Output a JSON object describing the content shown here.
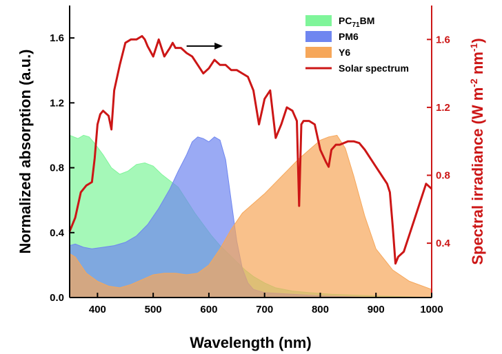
{
  "chart_data": {
    "type": "area",
    "xlabel": "Wavelength (nm)",
    "ylabel": "Normalized absorption (a.u.)",
    "ylabel_right": "Spectral irradiance (W m-2 nm-1)",
    "xlim": [
      350,
      1000
    ],
    "ylim": [
      0,
      1.8
    ],
    "ylim_right": [
      0.08,
      1.8
    ],
    "xticks": [
      400,
      500,
      600,
      700,
      800,
      900,
      1000
    ],
    "yticks": [
      0.0,
      0.4,
      0.8,
      1.2,
      1.6
    ],
    "yticks_right": [
      0.4,
      0.8,
      1.2,
      1.6
    ],
    "grid": false,
    "legend_position": "top-right",
    "arrow": {
      "from_x": 560,
      "to_x": 625,
      "y": 1.55
    },
    "legend": [
      {
        "label": "PC71BM",
        "base": "PC",
        "sub": "71",
        "tail": "BM",
        "color": "#7ff59a",
        "kind": "area"
      },
      {
        "label": "PM6",
        "color": "#6f86f0",
        "kind": "area"
      },
      {
        "label": "Y6",
        "color": "#f6a75a",
        "kind": "area"
      },
      {
        "label": "Solar spectrum",
        "color": "#cc1616",
        "kind": "line"
      }
    ],
    "series": [
      {
        "name": "PC71BM",
        "axis": "left",
        "color": "#7ff59a",
        "x": [
          350,
          365,
          375,
          385,
          395,
          410,
          425,
          440,
          455,
          470,
          485,
          500,
          515,
          530,
          545,
          560,
          575,
          590,
          605,
          620,
          635,
          650,
          665,
          680,
          700,
          720,
          750,
          780,
          820,
          860,
          900,
          950,
          1000
        ],
        "y": [
          1.0,
          0.98,
          1.0,
          0.99,
          0.95,
          0.88,
          0.8,
          0.76,
          0.78,
          0.82,
          0.83,
          0.81,
          0.76,
          0.72,
          0.68,
          0.6,
          0.52,
          0.45,
          0.38,
          0.32,
          0.27,
          0.22,
          0.17,
          0.13,
          0.09,
          0.06,
          0.04,
          0.03,
          0.02,
          0.015,
          0.01,
          0.005,
          0.0
        ]
      },
      {
        "name": "PM6",
        "axis": "left",
        "color": "#6f86f0",
        "x": [
          350,
          360,
          375,
          390,
          410,
          430,
          450,
          470,
          490,
          510,
          530,
          545,
          560,
          570,
          580,
          590,
          600,
          610,
          620,
          630,
          640,
          650,
          660,
          670,
          680,
          700,
          750,
          800,
          900,
          1000
        ],
        "y": [
          0.32,
          0.33,
          0.31,
          0.3,
          0.31,
          0.32,
          0.34,
          0.38,
          0.45,
          0.55,
          0.67,
          0.78,
          0.88,
          0.96,
          0.99,
          0.98,
          0.96,
          0.99,
          0.97,
          0.85,
          0.6,
          0.35,
          0.18,
          0.09,
          0.05,
          0.03,
          0.02,
          0.01,
          0.0,
          0.0
        ]
      },
      {
        "name": "Y6",
        "axis": "left",
        "color": "#f6a75a",
        "x": [
          350,
          360,
          380,
          400,
          420,
          440,
          460,
          480,
          500,
          520,
          540,
          560,
          580,
          600,
          620,
          640,
          660,
          680,
          700,
          720,
          740,
          760,
          780,
          800,
          815,
          830,
          845,
          860,
          880,
          900,
          930,
          960,
          1000
        ],
        "y": [
          0.27,
          0.25,
          0.15,
          0.1,
          0.07,
          0.06,
          0.08,
          0.11,
          0.14,
          0.15,
          0.15,
          0.14,
          0.15,
          0.2,
          0.3,
          0.42,
          0.52,
          0.58,
          0.64,
          0.71,
          0.78,
          0.85,
          0.91,
          0.97,
          0.99,
          1.0,
          0.92,
          0.75,
          0.5,
          0.3,
          0.17,
          0.1,
          0.05
        ]
      },
      {
        "name": "Solar spectrum",
        "axis": "right",
        "color": "#cc1616",
        "x": [
          350,
          360,
          370,
          380,
          390,
          395,
          400,
          405,
          410,
          420,
          425,
          430,
          440,
          450,
          460,
          470,
          480,
          485,
          490,
          500,
          510,
          520,
          530,
          535,
          540,
          550,
          560,
          570,
          580,
          590,
          600,
          610,
          620,
          630,
          640,
          650,
          660,
          670,
          680,
          690,
          700,
          710,
          720,
          730,
          740,
          750,
          758,
          762,
          766,
          770,
          780,
          790,
          800,
          810,
          815,
          820,
          828,
          835,
          850,
          860,
          870,
          880,
          890,
          900,
          910,
          920,
          925,
          930,
          935,
          940,
          950,
          960,
          970,
          980,
          990,
          1000
        ],
        "y": [
          0.47,
          0.55,
          0.7,
          0.74,
          0.76,
          0.9,
          1.1,
          1.16,
          1.18,
          1.15,
          1.07,
          1.3,
          1.45,
          1.58,
          1.6,
          1.6,
          1.62,
          1.6,
          1.56,
          1.5,
          1.6,
          1.5,
          1.55,
          1.58,
          1.55,
          1.55,
          1.52,
          1.5,
          1.45,
          1.4,
          1.43,
          1.48,
          1.45,
          1.45,
          1.42,
          1.42,
          1.4,
          1.38,
          1.3,
          1.1,
          1.25,
          1.3,
          1.02,
          1.1,
          1.2,
          1.18,
          1.12,
          0.62,
          1.1,
          1.12,
          1.12,
          1.1,
          0.95,
          0.88,
          0.85,
          0.95,
          0.98,
          0.98,
          1.0,
          1.0,
          0.99,
          0.95,
          0.9,
          0.85,
          0.8,
          0.75,
          0.7,
          0.5,
          0.28,
          0.32,
          0.35,
          0.45,
          0.55,
          0.65,
          0.75,
          0.72
        ]
      }
    ]
  }
}
